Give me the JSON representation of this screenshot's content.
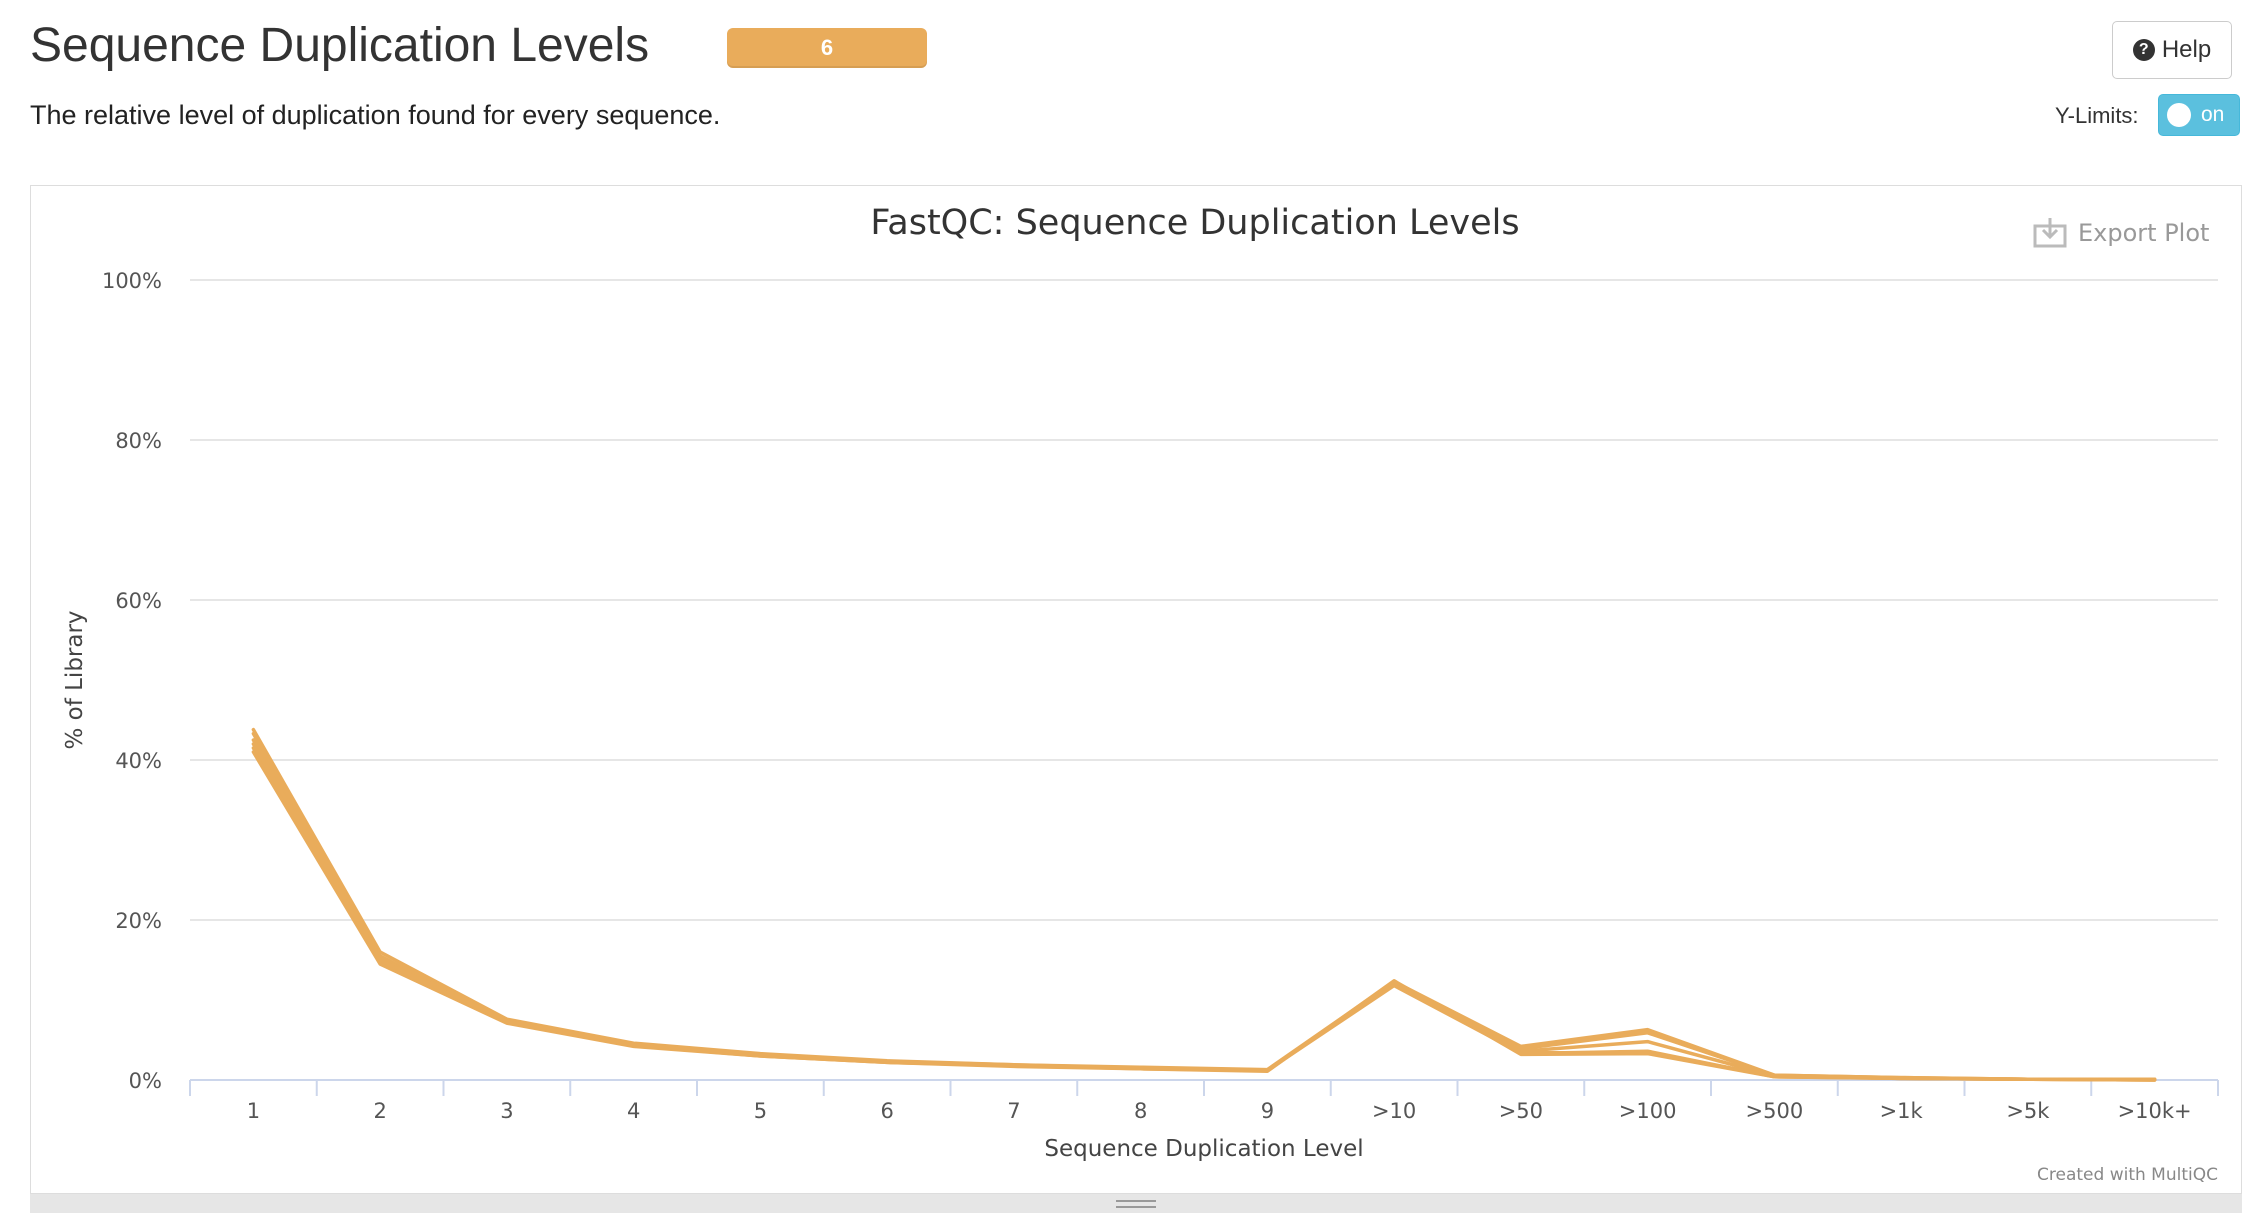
{
  "header": {
    "title": "Sequence Duplication Levels",
    "badge": "6",
    "description": "The relative level of duplication found for every sequence.",
    "help_label": "Help",
    "ylimits_label": "Y-Limits:",
    "ylimits_state": "on"
  },
  "plot": {
    "export_label": "Export Plot",
    "credits": "Created with MultiQC",
    "line_color": "#e9ac5b",
    "grid_color": "#e6e6e6",
    "axis_color": "#ccd6eb"
  },
  "chart_data": {
    "type": "line",
    "title": "FastQC: Sequence Duplication Levels",
    "xlabel": "Sequence Duplication Level",
    "ylabel": "% of Library",
    "categories": [
      "1",
      "2",
      "3",
      "4",
      "5",
      "6",
      "7",
      "8",
      "9",
      ">10",
      ">50",
      ">100",
      ">500",
      ">1k",
      ">5k",
      ">10k+"
    ],
    "y_ticks": [
      "0%",
      "20%",
      "40%",
      "60%",
      "80%",
      "100%"
    ],
    "ylim": [
      0,
      100
    ],
    "grid": true,
    "series": [
      {
        "values": [
          43.8,
          16.0,
          7.6,
          4.6,
          3.3,
          2.4,
          1.9,
          1.6,
          1.3,
          12.3,
          4.2,
          6.3,
          0.6,
          0.3,
          0.1,
          0.1
        ]
      },
      {
        "values": [
          43.3,
          15.5,
          7.4,
          4.5,
          3.2,
          2.3,
          1.9,
          1.5,
          1.2,
          12.1,
          3.9,
          5.9,
          0.6,
          0.3,
          0.1,
          0.1
        ]
      },
      {
        "values": [
          42.5,
          15.2,
          7.3,
          4.4,
          3.1,
          2.3,
          1.8,
          1.5,
          1.2,
          12.0,
          3.6,
          4.8,
          0.5,
          0.2,
          0.1,
          0.1
        ]
      },
      {
        "values": [
          41.5,
          14.8,
          7.2,
          4.3,
          3.0,
          2.2,
          1.8,
          1.4,
          1.2,
          12.2,
          3.3,
          3.6,
          0.4,
          0.2,
          0.1,
          0.0
        ]
      },
      {
        "values": [
          41.0,
          14.5,
          7.1,
          4.2,
          3.0,
          2.2,
          1.7,
          1.4,
          1.1,
          12.4,
          3.2,
          3.3,
          0.4,
          0.2,
          0.1,
          0.0
        ]
      },
      {
        "values": [
          42.0,
          15.0,
          7.3,
          4.4,
          3.1,
          2.3,
          1.8,
          1.5,
          1.2,
          11.8,
          3.4,
          3.4,
          0.5,
          0.2,
          0.1,
          0.0
        ]
      }
    ]
  }
}
